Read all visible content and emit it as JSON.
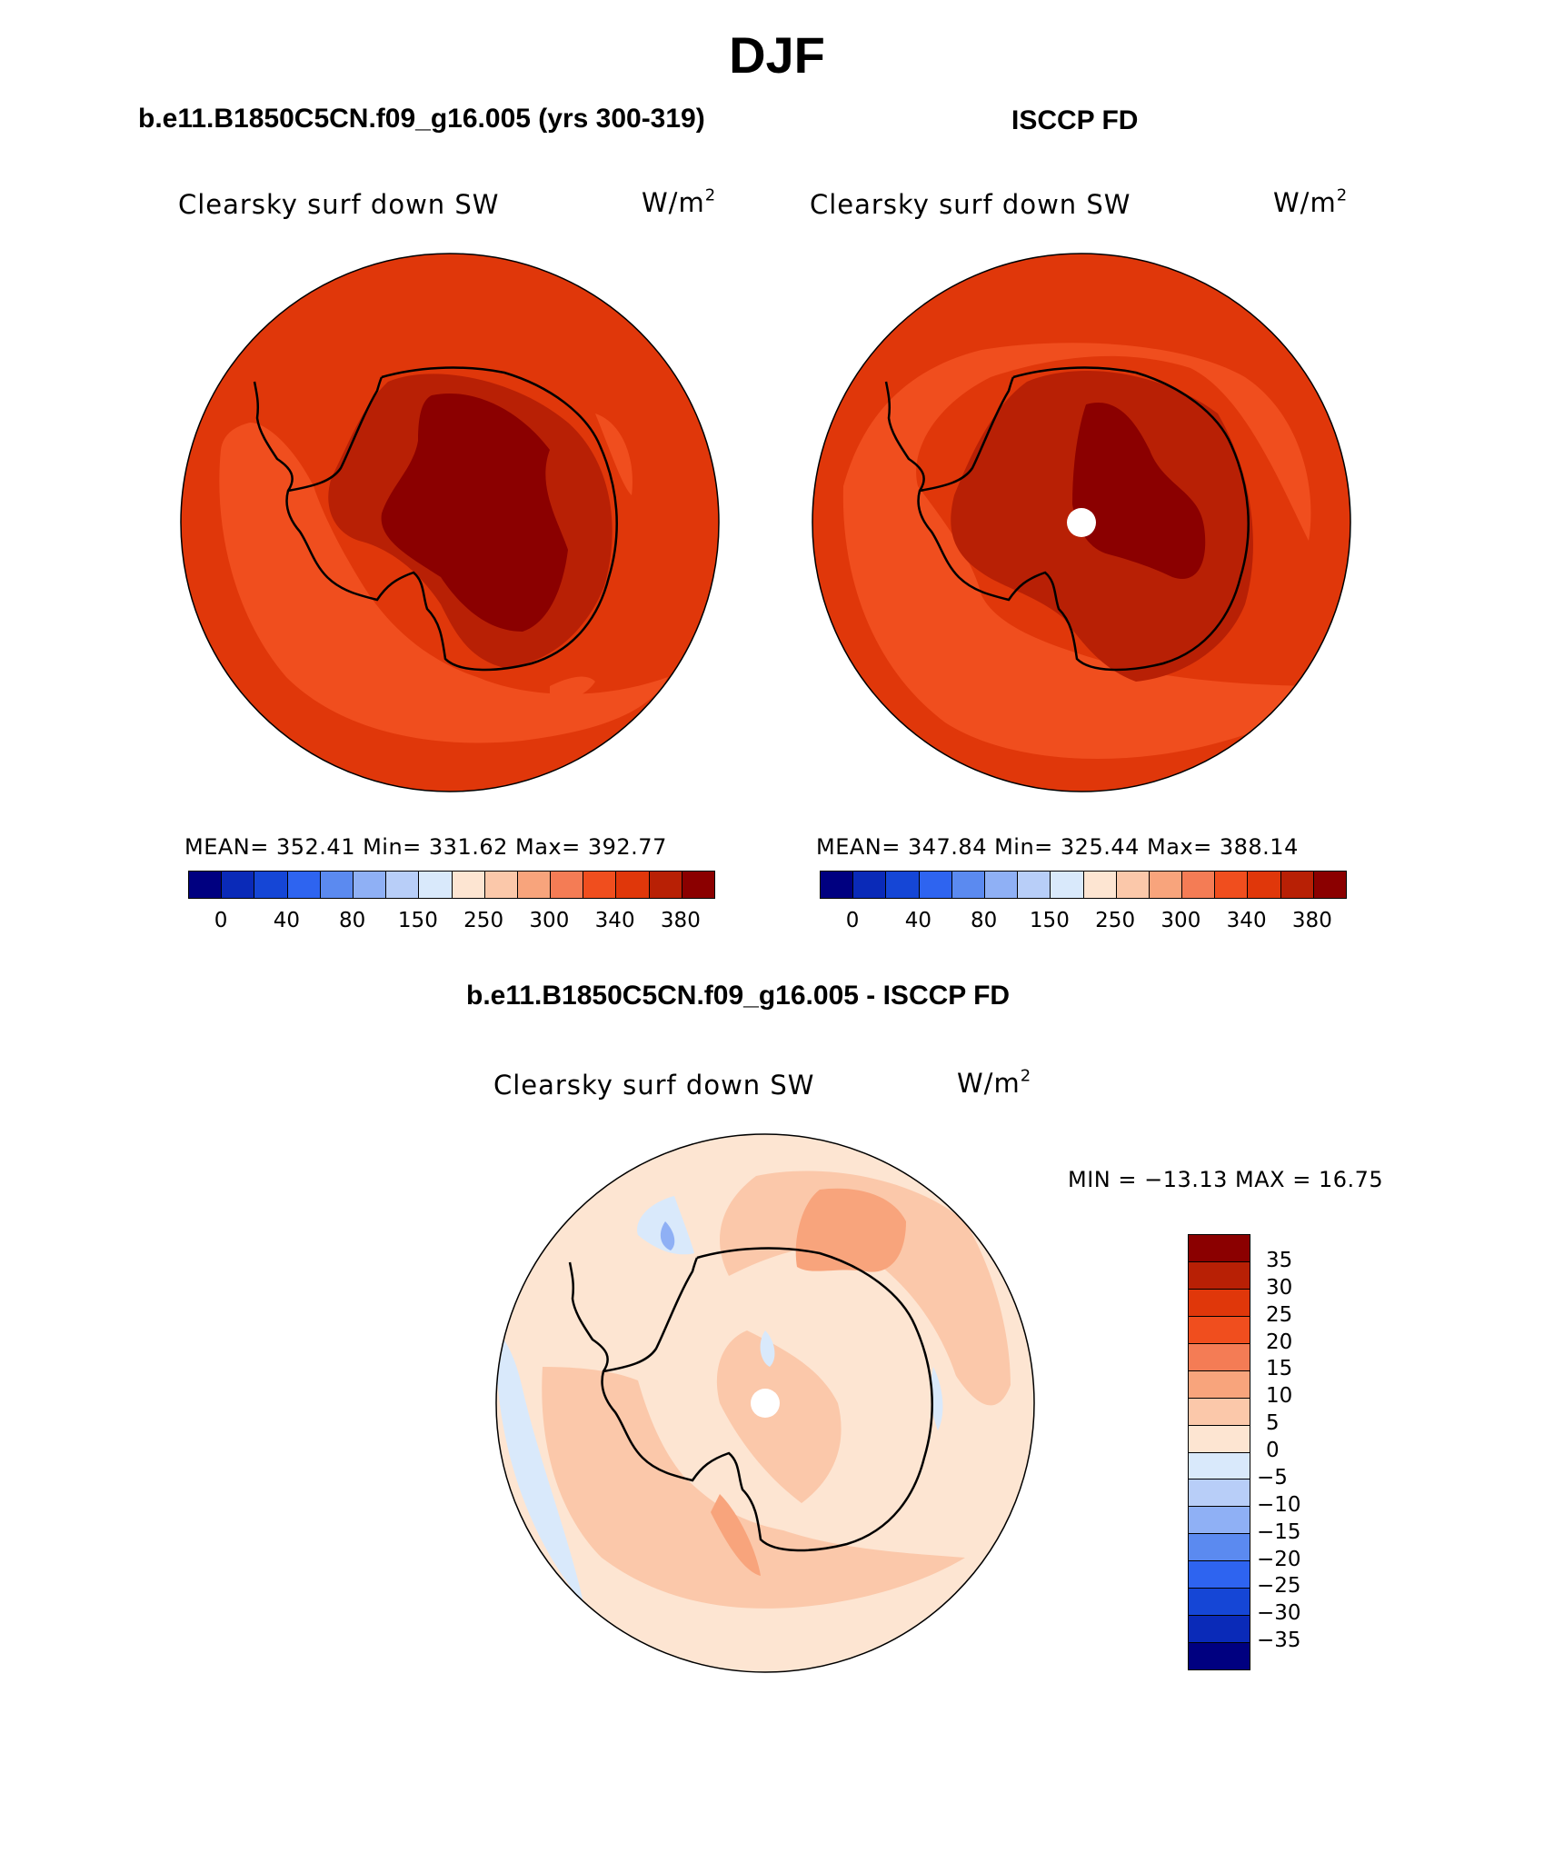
{
  "page": {
    "title": "DJF",
    "subtitle_model": "b.e11.B1850C5CN.f09_g16.005 (yrs 300-319)",
    "subtitle_obs": "ISCCP FD",
    "subtitle_diff": "b.e11.B1850C5CN.f09_g16.005 - ISCCP FD"
  },
  "panels": [
    {
      "id": "model",
      "variable": "Clearsky surf down SW",
      "units_base": "W/m",
      "units_exp": "2",
      "stats": "MEAN=  352.41   Min=  331.62   Max=  392.77",
      "colorbar_labels": [
        "0",
        "40",
        "80",
        "150",
        "250",
        "300",
        "340",
        "380"
      ],
      "colorbar_colors": [
        "#000080",
        "#0a2ab8",
        "#1546d6",
        "#2e64f0",
        "#5b8af0",
        "#8fb0f5",
        "#b8cef8",
        "#d9e9fb",
        "#fde5d2",
        "#fbc8aa",
        "#f8a47c",
        "#f47c55",
        "#f04e1e",
        "#e0370a",
        "#b82005",
        "#8b0000"
      ]
    },
    {
      "id": "obs",
      "variable": "Clearsky surf down SW",
      "units_base": "W/m",
      "units_exp": "2",
      "stats": "MEAN=  347.84   Min=  325.44   Max=  388.14",
      "colorbar_labels": [
        "0",
        "40",
        "80",
        "150",
        "250",
        "300",
        "340",
        "380"
      ],
      "colorbar_colors": [
        "#000080",
        "#0a2ab8",
        "#1546d6",
        "#2e64f0",
        "#5b8af0",
        "#8fb0f5",
        "#b8cef8",
        "#d9e9fb",
        "#fde5d2",
        "#fbc8aa",
        "#f8a47c",
        "#f47c55",
        "#f04e1e",
        "#e0370a",
        "#b82005",
        "#8b0000"
      ]
    },
    {
      "id": "diff",
      "variable": "Clearsky surf down SW",
      "units_base": "W/m",
      "units_exp": "2",
      "stats": "MIN = −13.13 MAX =   16.75",
      "colorbar_labels": [
        "35",
        "30",
        "25",
        "20",
        "15",
        "10",
        "5",
        "0",
        "−5",
        "−10",
        "−15",
        "−20",
        "−25",
        "−30",
        "−35"
      ],
      "colorbar_colors": [
        "#8b0000",
        "#b82005",
        "#e0370a",
        "#f04e1e",
        "#f47c55",
        "#f8a47c",
        "#fbc8aa",
        "#fde5d2",
        "#d9e9fb",
        "#b8cef8",
        "#8fb0f5",
        "#5b8af0",
        "#2e64f0",
        "#1546d6",
        "#0a2ab8",
        "#000080"
      ]
    }
  ],
  "map_colors": {
    "model_outer": "#e0370a",
    "model_inner_ocean": "#f04e1e",
    "model_coast": "#b82005",
    "model_interior": "#8b0000",
    "obs_outer": "#e0370a",
    "obs_inner_ocean": "#f04e1e",
    "obs_coast": "#b82005",
    "obs_interior": "#8b0000",
    "diff_base": "#fde5d2",
    "diff_warm": "#fbc8aa",
    "diff_warmer": "#f8a47c",
    "diff_cool": "#d9e9fb",
    "diff_cooler": "#b8cef8",
    "diff_coolest": "#8fb0f5"
  }
}
